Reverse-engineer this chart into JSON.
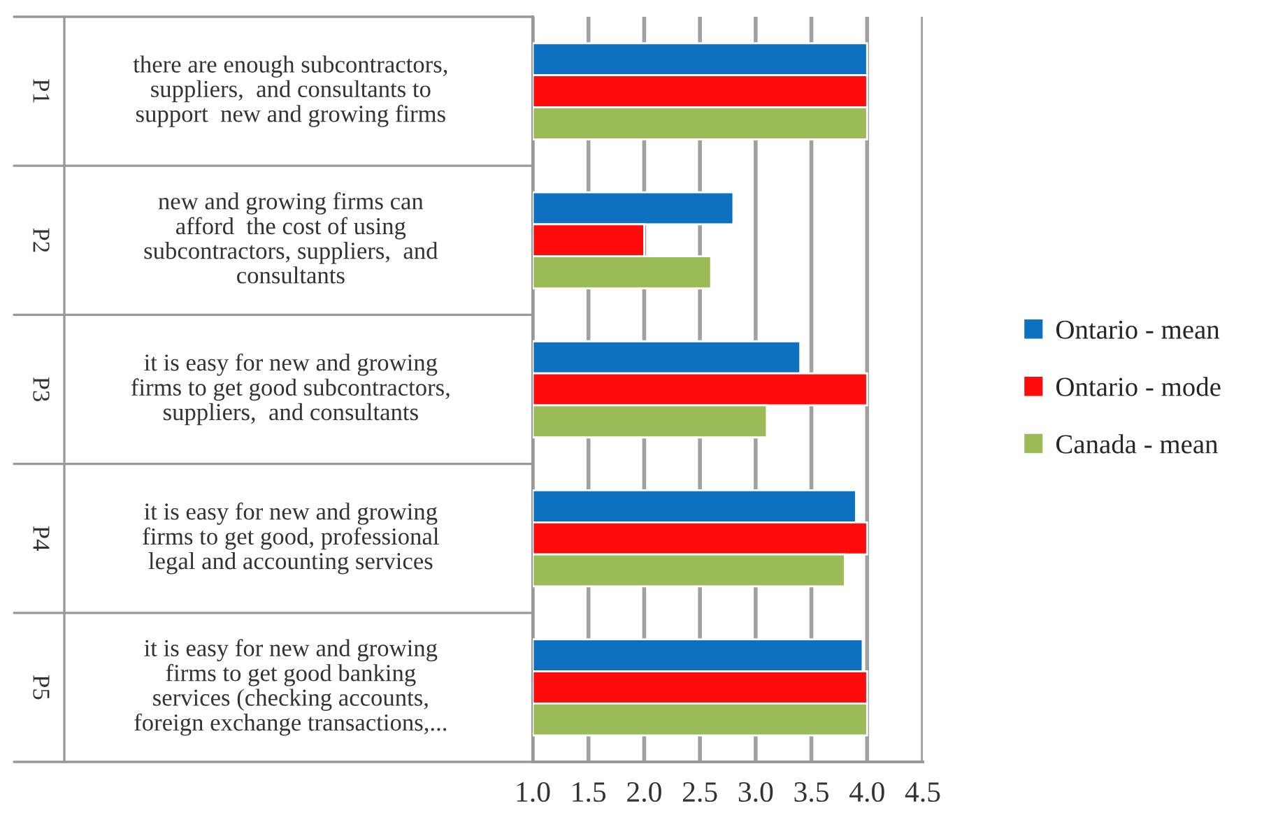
{
  "chart_data": {
    "type": "bar",
    "orientation": "horizontal",
    "categories": [
      "there are enough subcontractors,\nsuppliers,  and consultants to\nsupport  new and growing firms",
      "new and growing firms can\nafford  the cost of using\nsubcontractors, suppliers,  and\nconsultants",
      "it is easy for new and growing\nfirms to get good subcontractors,\nsuppliers,  and consultants",
      "it is easy for new and growing\nfirms to get good, professional\nlegal and accounting services",
      "it is easy for new and growing\nfirms to get good banking\nservices (checking accounts,\nforeign exchange transactions,..."
    ],
    "annotations": [
      "P1",
      "P2",
      "P3",
      "P4",
      "P5"
    ],
    "series": [
      {
        "name": "Ontario - mean",
        "color": "#0e70c0",
        "values": [
          4.0,
          2.8,
          3.4,
          3.9,
          3.96
        ]
      },
      {
        "name": "Ontario - mode",
        "color": "#fe0b0b",
        "values": [
          4.0,
          2.0,
          4.0,
          4.0,
          4.0
        ]
      },
      {
        "name": "Canada - mean",
        "color": "#9bbb59",
        "values": [
          4.0,
          2.6,
          3.1,
          3.8,
          4.0
        ]
      }
    ],
    "xlim": [
      1.0,
      4.5
    ],
    "xticks": [
      {
        "value": 1.0,
        "label": "1.0"
      },
      {
        "value": 1.5,
        "label": "1.5"
      },
      {
        "value": 2.0,
        "label": "2.0"
      },
      {
        "value": 2.5,
        "label": "2.5"
      },
      {
        "value": 3.0,
        "label": "3.0"
      },
      {
        "value": 3.5,
        "label": "3.5"
      },
      {
        "value": 4.0,
        "label": "4.0"
      },
      {
        "value": 4.5,
        "label": "4.5"
      }
    ],
    "grid": "x",
    "legend": "right"
  }
}
